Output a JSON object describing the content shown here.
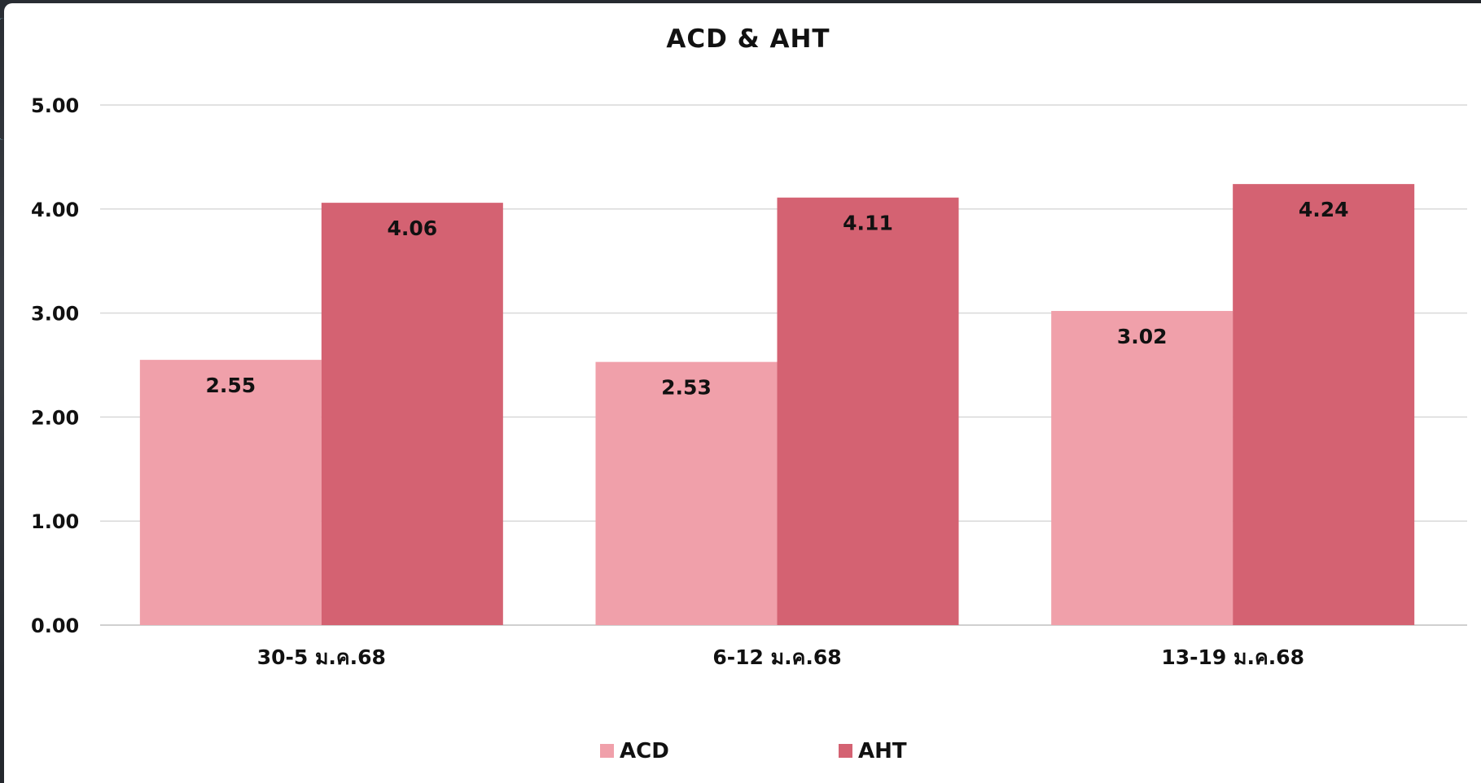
{
  "chart_data": {
    "type": "bar",
    "title": "ACD & AHT",
    "categories": [
      "30-5 ม.ค.68",
      "6-12 ม.ค.68",
      "13-19 ม.ค.68"
    ],
    "series": [
      {
        "name": "ACD",
        "values": [
          2.55,
          2.53,
          3.02
        ],
        "color": "#f0a0aa"
      },
      {
        "name": "AHT",
        "values": [
          4.06,
          4.11,
          4.24
        ],
        "color": "#d46272"
      }
    ],
    "ylim": [
      0,
      5
    ],
    "yticks": [
      "0.00",
      "1.00",
      "2.00",
      "3.00",
      "4.00",
      "5.00"
    ],
    "grid": true,
    "legend": "bottom",
    "data_labels": [
      "2.55",
      "4.06",
      "2.53",
      "4.11",
      "3.02",
      "4.24"
    ]
  }
}
